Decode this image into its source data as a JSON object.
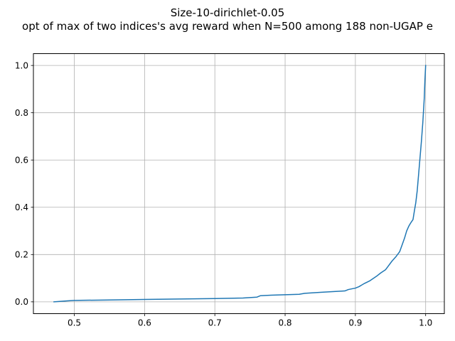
{
  "chart_data": {
    "type": "line",
    "title": "Size-10-dirichlet-0.05",
    "subtitle": "opt of max of two indices's avg reward when N=500 among 188 non-UGAP e",
    "xlabel": "",
    "ylabel": "",
    "xlim": [
      0.4418,
      1.0266
    ],
    "ylim": [
      -0.05,
      1.05
    ],
    "xticks": [
      0.5,
      0.6,
      0.7,
      0.8,
      0.9,
      1.0
    ],
    "xtick_labels": [
      "0.5",
      "0.6",
      "0.7",
      "0.8",
      "0.9",
      "1.0"
    ],
    "yticks": [
      0.0,
      0.2,
      0.4,
      0.6,
      0.8,
      1.0
    ],
    "ytick_labels": [
      "0.0",
      "0.2",
      "0.4",
      "0.6",
      "0.8",
      "1.0"
    ],
    "grid": true,
    "series": [
      {
        "color": "#1f77b4",
        "x": [
          0.471,
          0.49,
          0.5,
          0.55,
          0.6,
          0.65,
          0.7,
          0.74,
          0.76,
          0.765,
          0.78,
          0.82,
          0.828,
          0.85,
          0.885,
          0.89,
          0.9,
          0.905,
          0.913,
          0.92,
          0.925,
          0.93,
          0.936,
          0.943,
          0.947,
          0.952,
          0.958,
          0.963,
          0.967,
          0.97,
          0.973,
          0.976,
          0.979,
          0.982,
          0.984,
          0.986,
          0.988,
          0.99,
          0.992,
          0.994,
          0.996,
          0.998,
          0.999,
          1.0
        ],
        "y": [
          0.0,
          0.004,
          0.006,
          0.008,
          0.01,
          0.012,
          0.014,
          0.016,
          0.02,
          0.026,
          0.028,
          0.032,
          0.036,
          0.04,
          0.046,
          0.052,
          0.058,
          0.064,
          0.078,
          0.088,
          0.098,
          0.108,
          0.122,
          0.136,
          0.152,
          0.172,
          0.192,
          0.212,
          0.245,
          0.27,
          0.3,
          0.32,
          0.335,
          0.348,
          0.385,
          0.42,
          0.47,
          0.54,
          0.61,
          0.68,
          0.76,
          0.86,
          0.94,
          1.0
        ]
      }
    ]
  }
}
